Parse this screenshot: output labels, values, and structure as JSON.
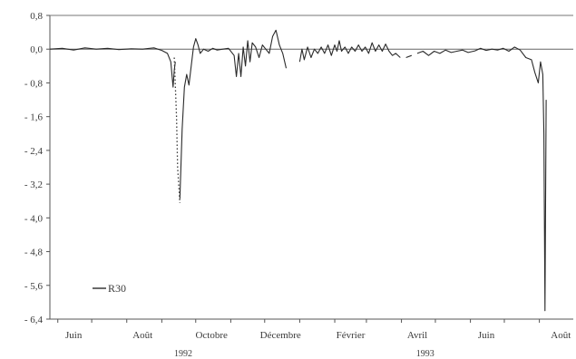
{
  "chart_data": {
    "type": "line",
    "title": "",
    "xlabel": "",
    "ylabel": "",
    "ylim": [
      -6.4,
      0.8
    ],
    "yticks": [
      0.8,
      0.0,
      -0.8,
      -1.6,
      -2.4,
      -3.2,
      -4.0,
      -4.8,
      -5.6,
      -6.4
    ],
    "ytick_labels": [
      "0,8",
      "0,0",
      "- 0,8",
      "- 1,6",
      "- 2,4",
      "- 3,2",
      "- 4,0",
      "- 4,8",
      "- 5,6",
      "- 6,4"
    ],
    "x_axis": {
      "start": "1992-05-25",
      "end": "1993-08-31",
      "month_labels": [
        {
          "label": "Juin",
          "date": "1992-06-15"
        },
        {
          "label": "Août",
          "date": "1992-08-15"
        },
        {
          "label": "Octobre",
          "date": "1992-10-15"
        },
        {
          "label": "Décembre",
          "date": "1992-12-15"
        },
        {
          "label": "Février",
          "date": "1993-02-15"
        },
        {
          "label": "Avril",
          "date": "1993-04-15"
        },
        {
          "label": "Juin",
          "date": "1993-06-15"
        },
        {
          "label": "Août",
          "date": "1993-08-20"
        }
      ],
      "year_labels": [
        {
          "label": "1992",
          "date": "1992-09-20"
        },
        {
          "label": "1993",
          "date": "1993-04-22"
        }
      ]
    },
    "grid": false,
    "legend": {
      "position": "bottom-left",
      "entries": [
        "R30"
      ]
    },
    "series": [
      {
        "name": "R30",
        "style": "solid",
        "color": "#2a2a2a",
        "points": [
          [
            "1992-05-25",
            0.0
          ],
          [
            "1992-06-05",
            0.02
          ],
          [
            "1992-06-15",
            -0.02
          ],
          [
            "1992-06-25",
            0.03
          ],
          [
            "1992-07-05",
            0.0
          ],
          [
            "1992-07-15",
            0.02
          ],
          [
            "1992-07-25",
            -0.01
          ],
          [
            "1992-08-05",
            0.01
          ],
          [
            "1992-08-15",
            0.0
          ],
          [
            "1992-08-25",
            0.03
          ],
          [
            "1992-09-01",
            -0.03
          ],
          [
            "1992-09-06",
            -0.1
          ],
          [
            "1992-09-09",
            -0.3
          ],
          [
            "1992-09-11",
            -0.9
          ],
          [
            "1992-09-12",
            -0.5
          ],
          [
            "1992-09-13",
            -0.3
          ],
          [
            null,
            null
          ],
          [
            "1992-09-17",
            -3.55
          ],
          [
            "1992-09-19",
            -1.9
          ],
          [
            "1992-09-21",
            -0.9
          ],
          [
            "1992-09-23",
            -0.6
          ],
          [
            "1992-09-25",
            -0.85
          ],
          [
            "1992-09-27",
            -0.4
          ],
          [
            "1992-09-29",
            0.05
          ],
          [
            "1992-10-01",
            0.25
          ],
          [
            "1992-10-03",
            0.1
          ],
          [
            "1992-10-05",
            -0.1
          ],
          [
            "1992-10-08",
            0.0
          ],
          [
            "1992-10-12",
            -0.05
          ],
          [
            "1992-10-16",
            0.02
          ],
          [
            "1992-10-20",
            -0.02
          ],
          [
            "1992-10-25",
            0.0
          ],
          [
            "1992-10-30",
            0.02
          ],
          [
            "1992-11-04",
            -0.15
          ],
          [
            "1992-11-06",
            -0.65
          ],
          [
            "1992-11-08",
            -0.1
          ],
          [
            "1992-11-10",
            -0.65
          ],
          [
            "1992-11-12",
            0.05
          ],
          [
            "1992-11-14",
            -0.4
          ],
          [
            "1992-11-16",
            0.2
          ],
          [
            "1992-11-18",
            -0.3
          ],
          [
            "1992-11-20",
            0.15
          ],
          [
            "1992-11-23",
            0.05
          ],
          [
            "1992-11-26",
            -0.2
          ],
          [
            "1992-11-29",
            0.1
          ],
          [
            "1992-12-02",
            0.0
          ],
          [
            "1992-12-05",
            -0.1
          ],
          [
            "1992-12-08",
            0.3
          ],
          [
            "1992-12-11",
            0.45
          ],
          [
            "1992-12-14",
            0.1
          ],
          [
            "1992-12-17",
            -0.1
          ],
          [
            "1992-12-20",
            -0.45
          ],
          [
            null,
            null
          ],
          [
            "1993-01-01",
            -0.3
          ],
          [
            "1993-01-03",
            0.0
          ],
          [
            "1993-01-05",
            -0.25
          ],
          [
            "1993-01-08",
            0.05
          ],
          [
            "1993-01-11",
            -0.2
          ],
          [
            "1993-01-14",
            0.0
          ],
          [
            "1993-01-17",
            -0.1
          ],
          [
            "1993-01-20",
            0.05
          ],
          [
            "1993-01-23",
            -0.1
          ],
          [
            "1993-01-26",
            0.1
          ],
          [
            "1993-01-29",
            -0.15
          ],
          [
            "1993-02-01",
            0.1
          ],
          [
            "1993-02-03",
            -0.05
          ],
          [
            "1993-02-05",
            0.2
          ],
          [
            "1993-02-07",
            -0.05
          ],
          [
            "1993-02-10",
            0.05
          ],
          [
            "1993-02-13",
            -0.1
          ],
          [
            "1993-02-16",
            0.05
          ],
          [
            "1993-02-19",
            -0.05
          ],
          [
            "1993-02-22",
            0.1
          ],
          [
            "1993-02-25",
            -0.05
          ],
          [
            "1993-02-28",
            0.05
          ],
          [
            "1993-03-03",
            -0.1
          ],
          [
            "1993-03-06",
            0.15
          ],
          [
            "1993-03-09",
            -0.05
          ],
          [
            "1993-03-12",
            0.1
          ],
          [
            "1993-03-15",
            -0.05
          ],
          [
            "1993-03-18",
            0.12
          ],
          [
            "1993-03-21",
            -0.05
          ],
          [
            "1993-03-24",
            -0.15
          ],
          [
            "1993-03-27",
            -0.1
          ],
          [
            "1993-03-31",
            -0.2
          ],
          [
            null,
            null
          ],
          [
            "1993-04-05",
            -0.2
          ],
          [
            "1993-04-10",
            -0.15
          ],
          [
            null,
            null
          ],
          [
            "1993-04-15",
            -0.1
          ],
          [
            "1993-04-20",
            -0.05
          ],
          [
            "1993-04-25",
            -0.15
          ],
          [
            "1993-04-30",
            -0.05
          ],
          [
            "1993-05-05",
            -0.1
          ],
          [
            "1993-05-10",
            -0.02
          ],
          [
            "1993-05-15",
            -0.08
          ],
          [
            "1993-05-20",
            -0.05
          ],
          [
            "1993-05-25",
            -0.02
          ],
          [
            "1993-05-30",
            -0.08
          ],
          [
            "1993-06-05",
            -0.04
          ],
          [
            "1993-06-10",
            0.02
          ],
          [
            "1993-06-15",
            -0.03
          ],
          [
            "1993-06-20",
            0.0
          ],
          [
            "1993-06-25",
            -0.02
          ],
          [
            "1993-06-30",
            0.02
          ],
          [
            "1993-07-05",
            -0.05
          ],
          [
            "1993-07-10",
            0.05
          ],
          [
            "1993-07-15",
            -0.02
          ],
          [
            "1993-07-20",
            -0.2
          ],
          [
            "1993-07-25",
            -0.25
          ],
          [
            "1993-07-28",
            -0.55
          ],
          [
            "1993-07-31",
            -0.8
          ],
          [
            "1993-08-02",
            -0.3
          ],
          [
            "1993-08-04",
            -0.6
          ],
          [
            "1993-08-05",
            -2.0
          ],
          [
            "1993-08-06",
            -6.2
          ],
          [
            "1993-08-07",
            -1.2
          ]
        ]
      },
      {
        "style": "dotted",
        "color": "#3a3a3a",
        "points": [
          [
            "1992-09-12",
            -0.2
          ],
          [
            "1992-09-14",
            -1.6
          ],
          [
            "1992-09-15",
            -2.8
          ],
          [
            "1992-09-17",
            -3.65
          ]
        ]
      }
    ]
  }
}
